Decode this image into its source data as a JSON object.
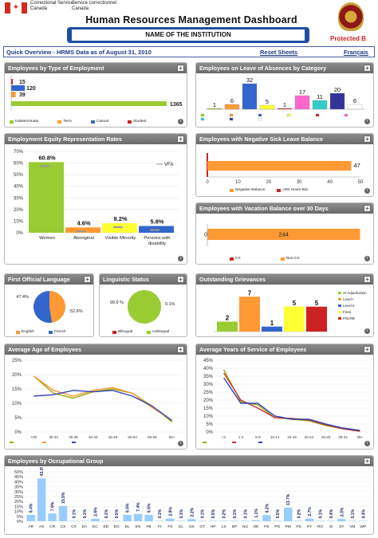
{
  "header": {
    "logo_line1": "Correctional Service",
    "logo_line2": "Canada",
    "logo_line3": "Service correctionnel",
    "logo_line4": "Canada",
    "title": "Human Resources Management Dashboard",
    "institution": "NAME OF THE INSTITUTION",
    "protected": "Protected B"
  },
  "toolbar": {
    "overview": "Quick Overview - HRMS Data as of August 31, 2010",
    "reset": "Reset Sheets",
    "lang": "Français"
  },
  "colors": {
    "green": "#99cc33",
    "orange": "#ff9933",
    "blue": "#3366cc",
    "red": "#cc2222",
    "yellow": "#ffff33"
  },
  "emp_type": {
    "title": "Employees by Type of Employment",
    "chart_data": {
      "type": "bar",
      "orientation": "horizontal",
      "categories": [
        "Indeterminate",
        "Term",
        "Casual",
        "Student"
      ],
      "values": [
        1365,
        39,
        120,
        15
      ],
      "colors": [
        "#99cc33",
        "#ff9933",
        "#3366cc",
        "#cc2222"
      ]
    },
    "legend": [
      "Indeterminate",
      "Term",
      "Casual",
      "Student"
    ]
  },
  "loa": {
    "title": "Employees on Leave of Absences by Category",
    "chart_data": {
      "type": "bar",
      "values": [
        1,
        6,
        32,
        5,
        1,
        17,
        11,
        20,
        6
      ],
      "colors": [
        "#99cc33",
        "#ff9933",
        "#3366cc",
        "#ffff33",
        "#cc2222",
        "#ff66cc",
        "#33cccc",
        "#333399",
        "#ffffff"
      ]
    }
  },
  "ee": {
    "title": "Employment Equity Representation Rates",
    "vfa": "VFA",
    "chart_data": {
      "type": "bar",
      "categories": [
        "Women",
        "Aboriginal",
        "Visible Minority",
        "Persons with disability"
      ],
      "values": [
        60.8,
        4.6,
        8.2,
        5.8
      ],
      "labels": [
        "60.8%",
        "4.6%",
        "8.2%",
        "5.8%"
      ],
      "ylim": [
        0,
        70
      ],
      "yticks": [
        "0%",
        "10%",
        "20%",
        "30%",
        "40%",
        "50%",
        "60%",
        "70%"
      ],
      "colors": [
        "#99cc33",
        "#ff9933",
        "#ffff33",
        "#3366cc"
      ]
    }
  },
  "sick": {
    "title": "Employees with Negative Sick Leave Balance",
    "chart_data": {
      "type": "bar",
      "orientation": "horizontal",
      "values": [
        2,
        47
      ],
      "labels": [
        "",
        "47"
      ],
      "xticks": [
        "0",
        "10",
        "20",
        "30",
        "40",
        "50"
      ],
      "xlim": [
        0,
        50
      ]
    },
    "legend": [
      "Negative Balance",
      "-200 Hours Bal."
    ]
  },
  "vac": {
    "title": "Employees with Vacation Balance over 30 Days",
    "chart_data": {
      "type": "bar",
      "orientation": "horizontal",
      "values": [
        0,
        244
      ],
      "labels": [
        "0",
        "244"
      ]
    },
    "legend": [
      "CX",
      "Non-CX"
    ]
  },
  "fol": {
    "title": "First Official Language",
    "chart_data": {
      "type": "pie",
      "values": [
        47.4,
        52.6
      ],
      "labels": [
        "47.4%",
        "52.6%"
      ]
    },
    "legend": [
      "English",
      "French"
    ]
  },
  "ling": {
    "title": "Linguistic Status",
    "chart_data": {
      "type": "pie",
      "values": [
        99.9,
        0.1
      ],
      "labels": [
        "99.9 %",
        "0.1%"
      ]
    },
    "legend": [
      "Bilingual",
      "Unilingual"
    ]
  },
  "griev": {
    "title": "Outstanding Grievances",
    "chart_data": {
      "type": "bar",
      "values": [
        2,
        7,
        1,
        5,
        5
      ],
      "labels": [
        "2",
        "7",
        "1",
        "5",
        "5"
      ],
      "colors": [
        "#99cc33",
        "#ff9933",
        "#3366cc",
        "#ffff33",
        "#cc2222"
      ]
    },
    "legend": [
      "At Adjudication",
      "Level I",
      "Level II",
      "Final",
      "PSLRB"
    ]
  },
  "age": {
    "title": "Average Age of Employees",
    "chart_data": {
      "type": "line",
      "categories": [
        "<30",
        "30-34",
        "35-39",
        "40-44",
        "45-49",
        "50-54",
        "55-59",
        "60+"
      ],
      "yticks": [
        "0%",
        "5%",
        "10%",
        "15%",
        "20%",
        "25%"
      ],
      "ylim": [
        0,
        25
      ],
      "series": [
        {
          "name": "National Headquarters CSC",
          "values": [
            19.5,
            13.5,
            11.8,
            14,
            15,
            13.5,
            9,
            3.5
          ],
          "color": "#99aa00"
        },
        {
          "name": "NHQ",
          "values": [
            19.5,
            14.5,
            12.5,
            14.5,
            15.5,
            13.5,
            8.5,
            4
          ],
          "color": "#ff9933"
        },
        {
          "name": "National",
          "values": [
            12.5,
            13,
            14.5,
            14,
            14.5,
            12.5,
            9,
            4
          ],
          "color": "#3344bb"
        }
      ],
      "legend": [
        "National Headquarters CSC",
        "NHQ",
        "National"
      ]
    }
  },
  "yrs": {
    "title": "Average Years of Service of Employees",
    "chart_data": {
      "type": "line",
      "categories": [
        "<1",
        "1-4",
        "5-9",
        "10-14",
        "15-19",
        "20-24",
        "25-29",
        "30-34",
        "35+"
      ],
      "yticks": [
        "0%",
        "5%",
        "10%",
        "15%",
        "20%",
        "25%",
        "30%",
        "35%",
        "40%",
        "45%"
      ],
      "ylim": [
        0,
        45
      ],
      "series": [
        {
          "name": "National Headquarters CSC",
          "values": [
            39,
            19,
            17,
            9,
            8,
            7,
            4,
            2,
            0.5
          ],
          "color": "#99aa00"
        },
        {
          "name": "NHQ",
          "values": [
            37,
            20,
            15,
            9,
            8.5,
            7.5,
            4.5,
            2,
            0.5
          ],
          "color": "#cc3333"
        },
        {
          "name": "National",
          "values": [
            34,
            18,
            18,
            10,
            8,
            8,
            5,
            2.5,
            1
          ],
          "color": "#3344bb"
        }
      ],
      "legend": [
        "National Headquarters CSC",
        "NHQ",
        "National"
      ]
    }
  },
  "occ": {
    "title": "Employees by Occupational Group",
    "chart_data": {
      "type": "bar",
      "categories": [
        "AR",
        "AS",
        "CR",
        "CS",
        "CX",
        "DA",
        "EC",
        "ED",
        "EG",
        "EL",
        "EN",
        "FB",
        "FI",
        "FS",
        "GL",
        "GS",
        "GT",
        "HP",
        "LS",
        "MT",
        "NU",
        "OE",
        "PE",
        "PG",
        "PM",
        "PS",
        "PY",
        "RO",
        "SI",
        "ST",
        "VM",
        "WP"
      ],
      "values": [
        6.4,
        43.3,
        7.9,
        15.5,
        0.1,
        0.1,
        2.6,
        0.1,
        0.5,
        6.5,
        7.4,
        6.5,
        0.1,
        2.8,
        0.1,
        2.2,
        0.1,
        0.5,
        0.2,
        0.1,
        0.1,
        1.1,
        6.2,
        0.5,
        13.7,
        0.2,
        2.7,
        0.1,
        0.4,
        2.3,
        0.1,
        0.4
      ],
      "labels": [
        "6.4%",
        "43.3%",
        "7.9%",
        "15.5%",
        "0.1%",
        "0.1%",
        "2.6%",
        "0.1%",
        "0.5%",
        "6.5%",
        "7.4%",
        "6.5%",
        "0.1%",
        "2.8%",
        "0.1%",
        "2.2%",
        "0.1%",
        "0.5%",
        "0.2%",
        "0.1%",
        "0.1%",
        "1.1%",
        "6.2%",
        "0.5%",
        "13.7%",
        "0.2%",
        "2.7%",
        "0.1%",
        "0.4%",
        "2.3%",
        "0.1%",
        "0.4%"
      ],
      "yticks": [
        "0%",
        "5%",
        "10%",
        "15%",
        "20%",
        "25%",
        "30%",
        "35%",
        "40%",
        "45%",
        "50%"
      ],
      "ylim": [
        0,
        50
      ]
    }
  }
}
